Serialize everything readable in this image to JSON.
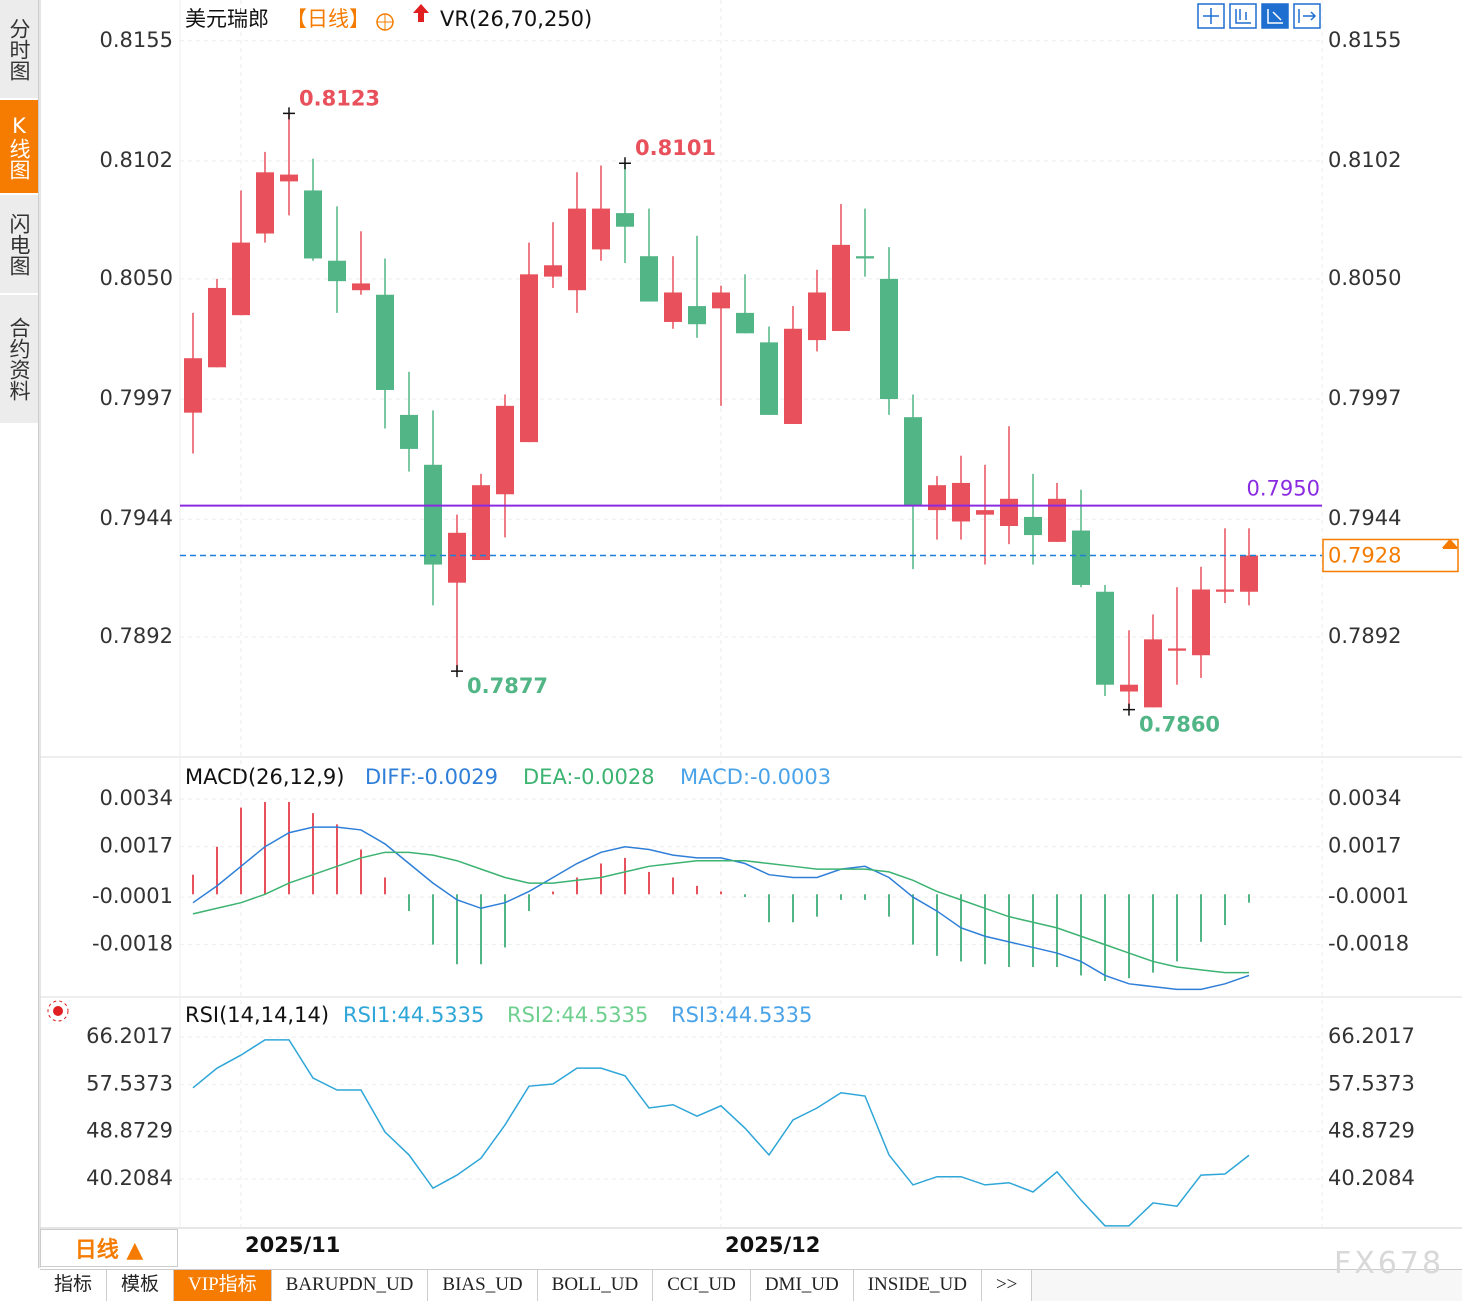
{
  "chart_data": [
    {
      "type": "candlestick",
      "title": "美元瑞郎",
      "period_label": "【日线】",
      "indicator": "VR(26,70,250)",
      "categories": [
        null,
        null,
        "2025/11",
        null,
        null,
        null,
        null,
        null,
        null,
        null,
        null,
        null,
        null,
        null,
        null,
        null,
        null,
        null,
        null,
        null,
        null,
        null,
        "2025/12",
        null,
        null,
        null,
        null,
        null,
        null,
        null,
        null,
        null,
        null,
        null,
        null,
        null,
        null,
        null,
        null,
        null,
        null,
        null,
        null,
        null,
        null
      ],
      "open": [
        0.7991,
        0.8011,
        0.8034,
        0.807,
        0.8093,
        0.8089,
        0.8058,
        0.8045,
        0.8043,
        0.799,
        0.7968,
        0.7916,
        0.7926,
        0.7955,
        0.7978,
        0.8051,
        0.8045,
        0.8063,
        0.8079,
        0.806,
        0.8031,
        0.8038,
        0.8037,
        0.8035,
        0.8022,
        0.7986,
        0.8023,
        0.8027,
        0.806,
        0.805,
        0.7989,
        0.7948,
        0.7943,
        0.7946,
        0.7941,
        0.7945,
        0.7934,
        0.7939,
        0.7912,
        0.7868,
        0.7861,
        0.7886,
        0.7884,
        0.7912,
        0.7912
      ],
      "high": [
        0.8035,
        0.805,
        0.8089,
        0.8106,
        0.8123,
        0.8103,
        0.8082,
        0.8071,
        0.8059,
        0.8009,
        0.7992,
        0.7946,
        0.7964,
        0.7999,
        0.8066,
        0.8075,
        0.8097,
        0.81,
        0.8101,
        0.8081,
        0.806,
        0.8069,
        0.8047,
        0.8052,
        0.8029,
        0.8038,
        0.8054,
        0.8083,
        0.8081,
        0.8064,
        0.7999,
        0.7963,
        0.7972,
        0.7968,
        0.7985,
        0.7964,
        0.796,
        0.7957,
        0.7915,
        0.7895,
        0.7902,
        0.7914,
        0.7923,
        0.794,
        0.794
      ],
      "low": [
        0.7973,
        0.8011,
        0.8034,
        0.8066,
        0.8078,
        0.8058,
        0.8035,
        0.8043,
        0.7984,
        0.7965,
        0.7906,
        0.7877,
        0.7926,
        0.7936,
        0.7978,
        0.8046,
        0.8035,
        0.8058,
        0.8057,
        0.804,
        0.8028,
        0.8024,
        0.7994,
        0.8026,
        0.799,
        0.7986,
        0.8018,
        0.8027,
        0.8051,
        0.799,
        0.7922,
        0.7935,
        0.7935,
        0.7924,
        0.7933,
        0.7924,
        0.7934,
        0.7914,
        0.7866,
        0.786,
        0.7861,
        0.7871,
        0.7874,
        0.7907,
        0.7906
      ],
      "close": [
        0.8015,
        0.8046,
        0.8066,
        0.8097,
        0.8096,
        0.8059,
        0.8049,
        0.8048,
        0.8001,
        0.7975,
        0.7924,
        0.7938,
        0.7959,
        0.7994,
        0.8052,
        0.8056,
        0.8081,
        0.8081,
        0.8073,
        0.804,
        0.8044,
        0.803,
        0.8044,
        0.8026,
        0.799,
        0.8028,
        0.8044,
        0.8065,
        0.8059,
        0.7997,
        0.795,
        0.7959,
        0.796,
        0.7948,
        0.7953,
        0.7937,
        0.7953,
        0.7915,
        0.7871,
        0.7871,
        0.7891,
        0.7887,
        0.7913,
        0.7913,
        0.7928
      ],
      "up_color": "#e8505b",
      "down_color": "#52b586",
      "ylim": [
        0.784,
        0.8173
      ],
      "yticks": [
        0.8155,
        0.8102,
        {
          "value": 0.805,
          "label": "0.8050"
        },
        0.7997,
        0.7944,
        0.7892
      ],
      "grid": true,
      "annotations": [
        {
          "index": 4,
          "value": 0.8123,
          "position": "above",
          "color": "#e8505b"
        },
        {
          "index": 18,
          "value": 0.8101,
          "position": "above",
          "color": "#e8505b"
        },
        {
          "index": 11,
          "value": 0.7877,
          "position": "below",
          "color": "#52b586"
        },
        {
          "index": 39,
          "value": {
            "value": 0.786,
            "label": "0.7860"
          },
          "position": "below",
          "color": "#52b586"
        }
      ],
      "hline": {
        "value": 0.795,
        "label": "0.7950",
        "color": "#8a2be2"
      },
      "current_price": {
        "value": 0.7928,
        "color": "#f57c00",
        "line_color": "#1e7fd8"
      }
    },
    {
      "type": "macd",
      "title": "MACD(26,12,9)",
      "series": [
        {
          "label": "DIFF:-0.0029",
          "color": "#2f7fd8",
          "values": [
            -0.0003,
            0.0003,
            0.001,
            0.0017,
            0.0022,
            0.0024,
            0.0024,
            0.0023,
            0.0018,
            0.0011,
            0.0004,
            -0.0002,
            -0.0005,
            -0.0003,
            0.0001,
            0.0006,
            0.0011,
            0.0015,
            0.0017,
            0.0016,
            0.0014,
            0.0013,
            0.0013,
            0.0011,
            0.0007,
            0.0006,
            0.0006,
            0.0009,
            0.001,
            0.0006,
            -0.0001,
            -0.0006,
            -0.0012,
            -0.0015,
            -0.0017,
            -0.0019,
            -0.0021,
            -0.0024,
            -0.0029,
            -0.0032,
            -0.0033,
            -0.0034,
            -0.0034,
            -0.0032,
            -0.0029
          ]
        },
        {
          "label": "DEA:-0.0028",
          "color": "#3cb371",
          "values": [
            -0.0007,
            -0.0005,
            -0.0003,
            0.0,
            0.0004,
            0.0007,
            0.001,
            0.0013,
            0.0015,
            0.0015,
            0.0014,
            0.0012,
            0.0009,
            0.0006,
            0.0004,
            0.0004,
            0.0005,
            0.0006,
            0.0008,
            0.001,
            0.0011,
            0.0012,
            0.0012,
            0.0012,
            0.0011,
            0.001,
            0.0009,
            0.0009,
            0.0009,
            0.0008,
            0.0005,
            0.0001,
            -0.0002,
            -0.0005,
            -0.0008,
            -0.001,
            -0.0012,
            -0.0015,
            -0.0018,
            -0.0021,
            -0.0024,
            -0.0026,
            -0.0027,
            -0.0028,
            -0.0028
          ]
        }
      ],
      "histogram": {
        "label": "MACD:-0.0003",
        "label_color": "#4aa3e8",
        "up_color": "#e8505b",
        "down_color": "#52b586",
        "values": [
          0.0007,
          0.0017,
          0.0031,
          0.0033,
          0.0033,
          0.0029,
          0.0025,
          0.0016,
          0.0006,
          -0.0006,
          -0.0018,
          -0.0025,
          -0.0025,
          -0.0019,
          -0.0006,
          0.0001,
          0.0006,
          0.0011,
          0.0013,
          0.0008,
          0.0006,
          0.0003,
          0.0001,
          -0.0001,
          -0.001,
          -0.001,
          -0.0008,
          -0.0002,
          -0.0002,
          -0.0008,
          -0.0018,
          -0.0022,
          -0.0024,
          -0.0025,
          -0.0026,
          -0.0026,
          -0.0026,
          -0.0029,
          -0.0031,
          -0.003,
          -0.0028,
          -0.0024,
          -0.0017,
          -0.0011,
          -0.0003
        ]
      },
      "ylim": [
        -0.0036,
        0.0048
      ],
      "yticks": [
        0.0034,
        0.0017,
        -0.0001,
        -0.0018
      ],
      "grid": true
    },
    {
      "type": "line",
      "title": "RSI(14,14,14)",
      "series": [
        {
          "label": "RSI1:44.5335",
          "color": "#2ea6d8",
          "values": [
            56.9,
            60.5,
            62.9,
            65.7,
            65.7,
            58.7,
            56.5,
            56.5,
            48.8,
            44.6,
            38.5,
            40.9,
            44.0,
            50.1,
            57.2,
            57.6,
            60.5,
            60.5,
            59.1,
            53.2,
            53.8,
            51.7,
            53.6,
            49.5,
            44.6,
            51.0,
            53.2,
            56.0,
            55.4,
            44.6,
            39.1,
            40.6,
            40.6,
            39.1,
            39.5,
            37.8,
            41.5,
            36.3,
            31.6,
            31.6,
            35.8,
            35.2,
            40.9,
            41.1,
            44.5335
          ]
        },
        {
          "label": "RSI2:44.5335",
          "color": "#6fcf8f"
        },
        {
          "label": "RSI3:44.5335",
          "color": "#4aa3e8"
        }
      ],
      "ylim": [
        31.2,
        73.0
      ],
      "yticks": [
        66.2017,
        57.5373,
        48.8729,
        40.2084
      ],
      "grid": true
    }
  ],
  "ui": {
    "sidebar_tabs": [
      "分时图",
      "K线图",
      "闪电图",
      "合约资料"
    ],
    "active_sidebar_tab": 1,
    "period_button": "日线 ▲",
    "bottom_tabs": [
      "指标",
      "模板",
      "VIP指标",
      "BARUPDN_UD",
      "BIAS_UD",
      "BOLL_UD",
      "CCI_UD",
      "DMI_UD",
      "INSIDE_UD",
      ">>"
    ],
    "active_bottom_tab": 2,
    "watermark": "FX678"
  }
}
